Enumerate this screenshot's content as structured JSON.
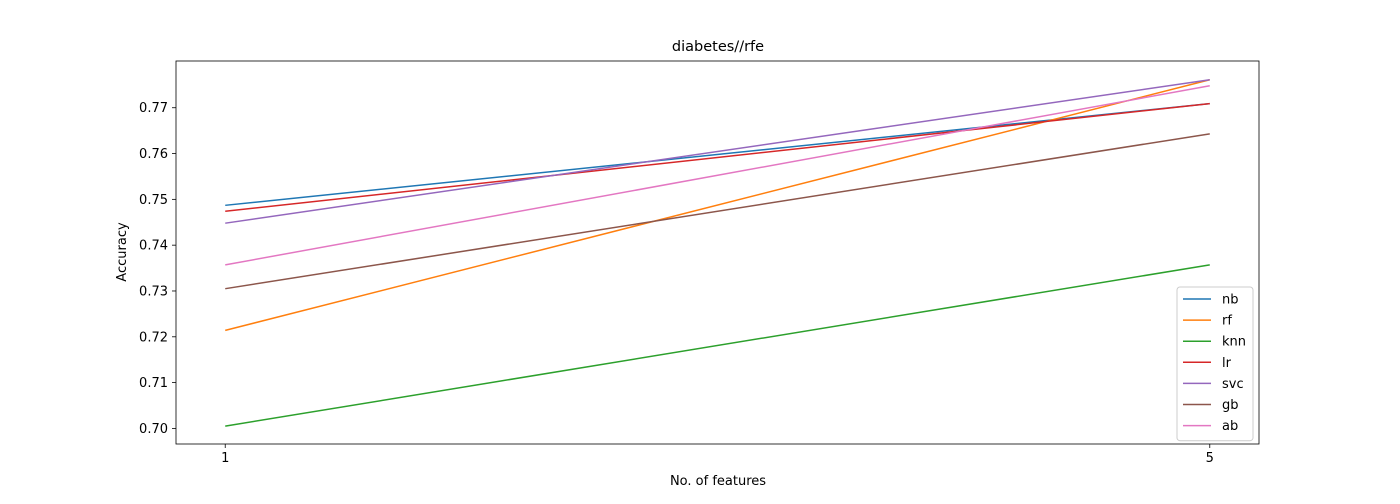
{
  "chart_data": {
    "type": "line",
    "title": "diabetes//rfe",
    "xlabel": "No. of features",
    "ylabel": "Accuracy",
    "x": [
      1,
      5
    ],
    "xticks": [
      1,
      5
    ],
    "yticks": [
      0.7,
      0.71,
      0.72,
      0.73,
      0.74,
      0.75,
      0.76,
      0.77
    ],
    "xlim": [
      0.8,
      5.2
    ],
    "ylim": [
      0.6966,
      0.7802
    ],
    "grid": false,
    "legend_position": "bottom-right",
    "series": [
      {
        "name": "nb",
        "color": "#1f77b4",
        "values": [
          0.7487,
          0.7709
        ]
      },
      {
        "name": "rf",
        "color": "#ff7f0e",
        "values": [
          0.7214,
          0.7761
        ]
      },
      {
        "name": "knn",
        "color": "#2ca02c",
        "values": [
          0.7005,
          0.7357
        ]
      },
      {
        "name": "lr",
        "color": "#d62728",
        "values": [
          0.7474,
          0.7709
        ]
      },
      {
        "name": "svc",
        "color": "#9467bd",
        "values": [
          0.7448,
          0.7761
        ]
      },
      {
        "name": "gb",
        "color": "#8c564b",
        "values": [
          0.7305,
          0.7643
        ]
      },
      {
        "name": "ab",
        "color": "#e377c2",
        "values": [
          0.7357,
          0.7748
        ]
      }
    ]
  }
}
